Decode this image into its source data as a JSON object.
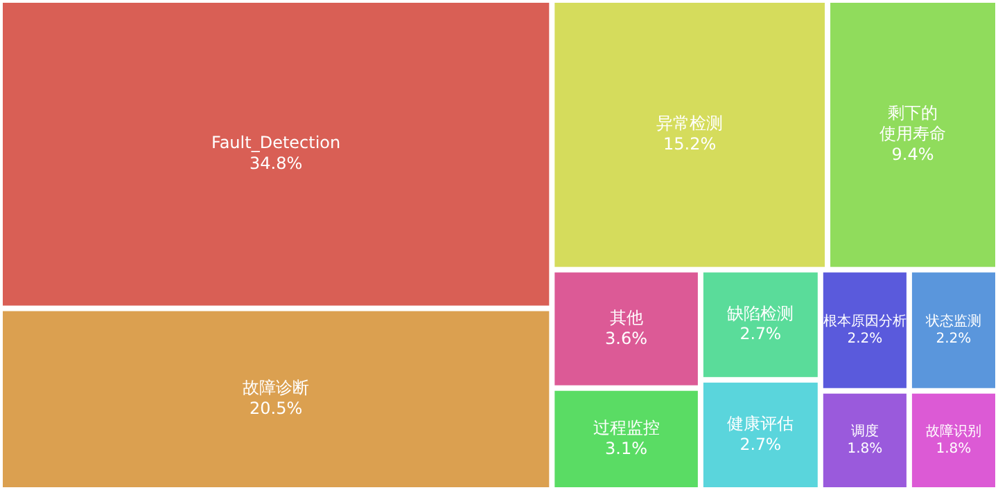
{
  "chart_data": {
    "type": "other",
    "categories": [
      "Fault_Detection",
      "故障诊断",
      "异常检测",
      "剩下的使用寿命",
      "其他",
      "过程监控",
      "缺陷检测",
      "健康评估",
      "根本原因分析",
      "状态监测",
      "调度",
      "故障识别"
    ],
    "values": [
      34.8,
      20.5,
      15.2,
      9.4,
      3.6,
      3.1,
      2.7,
      2.7,
      2.2,
      2.2,
      1.8,
      1.8
    ],
    "value_labels": [
      "34.8%",
      "20.5%",
      "15.2%",
      "9.4%",
      "3.6%",
      "3.1%",
      "2.7%",
      "2.7%",
      "2.2%",
      "2.2%",
      "1.8%",
      "1.8%"
    ],
    "colors": [
      "#d95f55",
      "#dba050",
      "#d5dc5c",
      "#90dc5c",
      "#dc5a96",
      "#5adc64",
      "#5adc9a",
      "#5ad5dc",
      "#5a5adc",
      "#5a96dc",
      "#9a5adc",
      "#dc5ad5"
    ]
  }
}
